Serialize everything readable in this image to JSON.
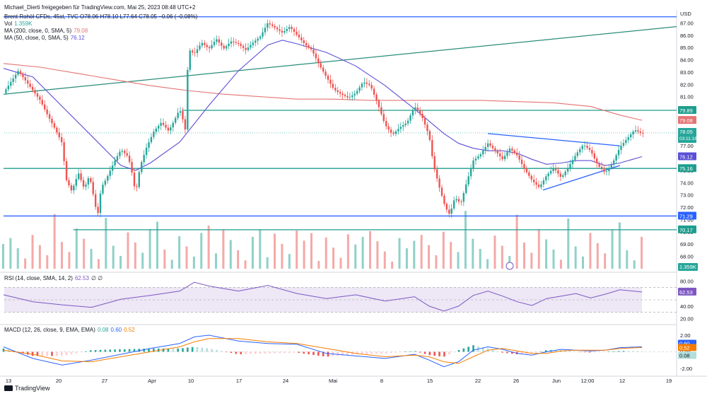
{
  "header": {
    "credit": "Michael_Dierti freigegeben für TradingView.com, Mai 25, 2023 08:48 UTC+2",
    "symbol_line": "Brent Rohöl CFDs, 45st, TVC O78.06 H78.10 L77.64 C78.05 −0.06 (−0.08%)",
    "vol_label": "Vol",
    "vol_value": "1.359K",
    "ma200_label": "MA (200, close, 0, SMA, 5)",
    "ma200_value": "79.08",
    "ma50_label": "MA (50, close, 0, SMA, 5)",
    "ma50_value": "76.12",
    "rsi_label": "RSI (14, close, SMA, 14, 2)",
    "rsi_value": "62.53",
    "rsi_extra": "∅ ∅",
    "macd_label": "MACD (12, 26, close, 9, EMA, EMA)",
    "macd_v1": "0.08",
    "macd_v2": "0.60",
    "macd_v3": "0.52"
  },
  "footer": {
    "brand": "TradingView"
  },
  "colors": {
    "up": "#26a69a",
    "down": "#ef5350",
    "ma50": "#5b4fd6",
    "ma200": "#e57373",
    "level": "#1e9e8e",
    "blue_line": "#2962ff",
    "trend": "#2a8c7c",
    "rsi": "#7e57c2"
  },
  "chart_data": [
    {
      "type": "candlestick",
      "title": "Brent Rohöl CFDs, 45st, TVC",
      "y_unit": "USD",
      "ylim": [
        67.0,
        87.6
      ],
      "price_ticks": [
        "87.00",
        "86.00",
        "85.00",
        "84.00",
        "83.00",
        "82.00",
        "81.00",
        "80.00",
        "79.00",
        "78.00",
        "77.00",
        "76.00",
        "75.00",
        "74.00",
        "73.00",
        "72.00",
        "71.00",
        "70.00",
        "69.00",
        "68.00"
      ],
      "x_ticks": [
        "13",
        "20",
        "27",
        "Apr",
        "10",
        "17",
        "24",
        "Mai",
        "8",
        "15",
        "22",
        "26",
        "Jun",
        "12:00",
        "12",
        "19"
      ],
      "price_path": [
        [
          0,
          81.3
        ],
        [
          2,
          83.1
        ],
        [
          4,
          81.5
        ],
        [
          5,
          80.7
        ],
        [
          6,
          79.5
        ],
        [
          7,
          78.4
        ],
        [
          8,
          77.2
        ],
        [
          8.5,
          74.3
        ],
        [
          9.3,
          73.3
        ],
        [
          10.2,
          74.8
        ],
        [
          11,
          73.5
        ],
        [
          11.7,
          74.6
        ],
        [
          12.3,
          72.8
        ],
        [
          12.8,
          71.2
        ],
        [
          13.3,
          73.6
        ],
        [
          14,
          74.3
        ],
        [
          15,
          75.6
        ],
        [
          16,
          76.7
        ],
        [
          17,
          76.1
        ],
        [
          17.5,
          74.8
        ],
        [
          18,
          73.1
        ],
        [
          18.6,
          75.3
        ],
        [
          19.5,
          76.9
        ],
        [
          20.5,
          78.2
        ],
        [
          21.5,
          78.9
        ],
        [
          22.5,
          78.2
        ],
        [
          23.3,
          79.1
        ],
        [
          24,
          80.0
        ],
        [
          24.5,
          79.0
        ],
        [
          24.8,
          78.2
        ],
        [
          25,
          79.5
        ],
        [
          25.1,
          84.1
        ],
        [
          25.3,
          84.8
        ],
        [
          26,
          84.5
        ],
        [
          27,
          85.4
        ],
        [
          28,
          84.9
        ],
        [
          29,
          85.7
        ],
        [
          30,
          84.9
        ],
        [
          31,
          85.5
        ],
        [
          32,
          85.3
        ],
        [
          33,
          84.8
        ],
        [
          34,
          85.4
        ],
        [
          35,
          85.9
        ],
        [
          36,
          87.0
        ],
        [
          37,
          86.6
        ],
        [
          38,
          86.2
        ],
        [
          39,
          86.7
        ],
        [
          40,
          86.0
        ],
        [
          41,
          85.3
        ],
        [
          42,
          84.8
        ],
        [
          43,
          83.6
        ],
        [
          44,
          82.6
        ],
        [
          45,
          81.6
        ],
        [
          46,
          81.2
        ],
        [
          47,
          80.9
        ],
        [
          48,
          81.3
        ],
        [
          49,
          82.2
        ],
        [
          50,
          81.9
        ],
        [
          51,
          80.4
        ],
        [
          52,
          78.7
        ],
        [
          53,
          77.9
        ],
        [
          54,
          78.5
        ],
        [
          55,
          78.9
        ],
        [
          56,
          80.2
        ],
        [
          57,
          79.4
        ],
        [
          58,
          77.8
        ],
        [
          58.6,
          75.4
        ],
        [
          59.4,
          73.6
        ],
        [
          60.2,
          72.0
        ],
        [
          60.8,
          71.4
        ],
        [
          61.5,
          72.8
        ],
        [
          62.3,
          72.3
        ],
        [
          63,
          73.8
        ],
        [
          64,
          75.8
        ],
        [
          65,
          76.3
        ],
        [
          66,
          77.2
        ],
        [
          67,
          76.6
        ],
        [
          68,
          75.9
        ],
        [
          69,
          76.8
        ],
        [
          70,
          76.2
        ],
        [
          71,
          75.1
        ],
        [
          72,
          74.2
        ],
        [
          73,
          73.6
        ],
        [
          74,
          74.6
        ],
        [
          75,
          75.2
        ],
        [
          76,
          74.4
        ],
        [
          77,
          75.3
        ],
        [
          78,
          76.3
        ],
        [
          79,
          77.1
        ],
        [
          80,
          76.6
        ],
        [
          81,
          75.4
        ],
        [
          82,
          74.8
        ],
        [
          83,
          75.6
        ],
        [
          84,
          76.9
        ],
        [
          85,
          77.6
        ],
        [
          86,
          78.3
        ],
        [
          87,
          78.0
        ]
      ],
      "series": [
        {
          "name": "MA (200, close, 0, SMA, 5)",
          "last": 79.08,
          "path": [
            [
              0,
              83.7
            ],
            [
              5,
              83.4
            ],
            [
              10,
              82.9
            ],
            [
              15,
              82.4
            ],
            [
              20,
              81.9
            ],
            [
              25,
              81.5
            ],
            [
              30,
              81.2
            ],
            [
              35,
              81.0
            ],
            [
              40,
              80.8
            ],
            [
              45,
              80.8
            ],
            [
              50,
              80.7
            ],
            [
              55,
              80.7
            ],
            [
              60,
              80.7
            ],
            [
              65,
              80.7
            ],
            [
              70,
              80.6
            ],
            [
              75,
              80.5
            ],
            [
              80,
              80.2
            ],
            [
              84,
              79.5
            ],
            [
              87,
              79.08
            ]
          ]
        },
        {
          "name": "MA (50, close, 0, SMA, 5)",
          "last": 76.12,
          "path": [
            [
              0,
              83.3
            ],
            [
              4,
              82.6
            ],
            [
              8,
              80.2
            ],
            [
              12,
              77.8
            ],
            [
              16,
              75.4
            ],
            [
              18,
              75.0
            ],
            [
              20,
              75.6
            ],
            [
              24,
              77.3
            ],
            [
              28,
              80.3
            ],
            [
              32,
              83.1
            ],
            [
              36,
              85.2
            ],
            [
              38,
              85.6
            ],
            [
              40,
              85.3
            ],
            [
              44,
              84.6
            ],
            [
              48,
              83.5
            ],
            [
              52,
              81.9
            ],
            [
              56,
              80.0
            ],
            [
              60,
              78.0
            ],
            [
              62,
              77.2
            ],
            [
              64,
              76.8
            ],
            [
              66,
              76.6
            ],
            [
              68,
              76.6
            ],
            [
              70,
              76.4
            ],
            [
              72,
              75.9
            ],
            [
              74,
              75.5
            ],
            [
              76,
              75.6
            ],
            [
              78,
              75.8
            ],
            [
              80,
              75.8
            ],
            [
              82,
              75.4
            ],
            [
              84,
              75.6
            ],
            [
              87,
              76.12
            ]
          ]
        }
      ],
      "levels": [
        {
          "value": 79.89,
          "label": "79.89",
          "start_x": 24.3
        },
        {
          "value": 75.16,
          "label": "75.16",
          "start_x": 0
        },
        {
          "value": 71.29,
          "label": "71.29",
          "start_x": 0
        },
        {
          "value": 70.17,
          "label": "70.17",
          "start_x": 9.5
        },
        {
          "value": 87.5,
          "label": "",
          "start_x": 0
        }
      ],
      "trendlines": [
        {
          "from": [
            0,
            81.2
          ],
          "to": [
            115,
            86.7
          ]
        },
        {
          "from": [
            66,
            78.0
          ],
          "to": [
            84,
            77.0
          ]
        },
        {
          "from": [
            73.5,
            73.4
          ],
          "to": [
            84,
            75.4
          ]
        }
      ],
      "last_close": {
        "value": 78.05,
        "label": "78.05",
        "countdown": "03:11:16"
      },
      "volume_last": "1.359K"
    },
    {
      "type": "line",
      "title": "RSI (14, close, SMA, 14, 2)",
      "ylim": [
        15,
        85
      ],
      "y_ticks": [
        "80.00",
        "40.00",
        "20.00"
      ],
      "band": [
        30,
        70
      ],
      "last": 62.53,
      "path": [
        [
          0,
          58
        ],
        [
          4,
          47
        ],
        [
          8,
          42
        ],
        [
          12,
          38
        ],
        [
          16,
          51
        ],
        [
          20,
          57
        ],
        [
          24,
          64
        ],
        [
          26,
          78
        ],
        [
          28,
          72
        ],
        [
          32,
          64
        ],
        [
          36,
          73
        ],
        [
          40,
          60
        ],
        [
          44,
          52
        ],
        [
          48,
          58
        ],
        [
          52,
          48
        ],
        [
          56,
          55
        ],
        [
          58,
          40
        ],
        [
          60,
          32
        ],
        [
          62,
          40
        ],
        [
          64,
          57
        ],
        [
          66,
          64
        ],
        [
          68,
          56
        ],
        [
          70,
          47
        ],
        [
          72,
          41
        ],
        [
          74,
          52
        ],
        [
          76,
          56
        ],
        [
          78,
          60
        ],
        [
          80,
          53
        ],
        [
          82,
          59
        ],
        [
          84,
          66
        ],
        [
          87,
          62.53
        ]
      ]
    },
    {
      "type": "line",
      "title": "MACD (12, 26, close, 9, EMA, EMA)",
      "ylim": [
        -2.6,
        2.6
      ],
      "y_ticks": [
        "2.00",
        "0.00",
        "-2.00"
      ],
      "macd_last": 0.6,
      "signal_last": 0.52,
      "hist_last": 0.08,
      "macd_path": [
        [
          0,
          0.6
        ],
        [
          4,
          -0.8
        ],
        [
          8,
          -1.6
        ],
        [
          12,
          -1.0
        ],
        [
          16,
          -0.3
        ],
        [
          20,
          0.4
        ],
        [
          24,
          1.0
        ],
        [
          26,
          1.8
        ],
        [
          28,
          2.0
        ],
        [
          32,
          1.3
        ],
        [
          36,
          1.0
        ],
        [
          40,
          0.9
        ],
        [
          44,
          -0.2
        ],
        [
          48,
          -0.5
        ],
        [
          52,
          -0.8
        ],
        [
          56,
          -0.3
        ],
        [
          58,
          -1.0
        ],
        [
          60,
          -1.8
        ],
        [
          62,
          -1.2
        ],
        [
          64,
          0.2
        ],
        [
          66,
          0.6
        ],
        [
          68,
          0.3
        ],
        [
          70,
          -0.2
        ],
        [
          72,
          -0.4
        ],
        [
          74,
          0.0
        ],
        [
          76,
          0.3
        ],
        [
          78,
          0.2
        ],
        [
          80,
          0.1
        ],
        [
          82,
          0.2
        ],
        [
          84,
          0.5
        ],
        [
          87,
          0.6
        ]
      ],
      "signal_path": [
        [
          0,
          0.2
        ],
        [
          4,
          -0.3
        ],
        [
          8,
          -1.1
        ],
        [
          12,
          -1.2
        ],
        [
          16,
          -0.6
        ],
        [
          20,
          0.0
        ],
        [
          24,
          0.6
        ],
        [
          26,
          1.2
        ],
        [
          28,
          1.6
        ],
        [
          32,
          1.6
        ],
        [
          36,
          1.2
        ],
        [
          40,
          1.0
        ],
        [
          44,
          0.4
        ],
        [
          48,
          -0.2
        ],
        [
          52,
          -0.6
        ],
        [
          56,
          -0.4
        ],
        [
          58,
          -0.6
        ],
        [
          60,
          -1.2
        ],
        [
          62,
          -1.4
        ],
        [
          64,
          -0.6
        ],
        [
          66,
          0.2
        ],
        [
          68,
          0.4
        ],
        [
          70,
          0.1
        ],
        [
          72,
          -0.2
        ],
        [
          74,
          -0.2
        ],
        [
          76,
          0.1
        ],
        [
          78,
          0.2
        ],
        [
          80,
          0.2
        ],
        [
          82,
          0.2
        ],
        [
          84,
          0.4
        ],
        [
          87,
          0.52
        ]
      ]
    }
  ]
}
